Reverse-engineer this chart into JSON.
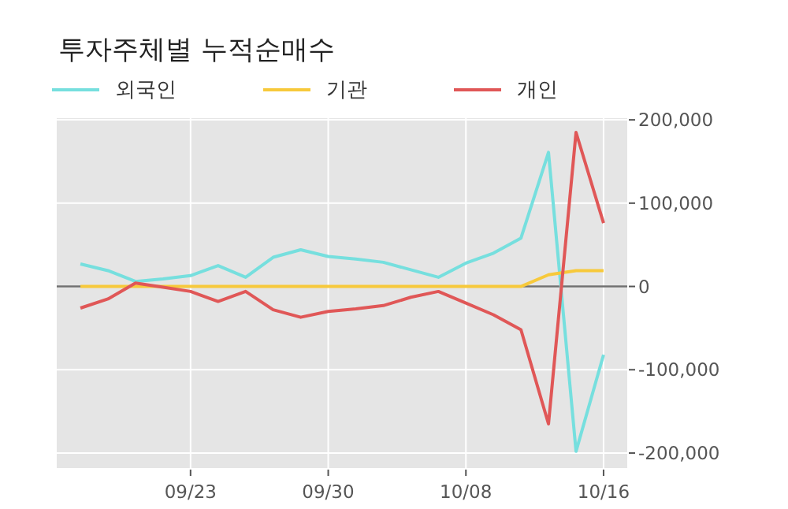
{
  "chart_data": {
    "type": "line",
    "title": "투자주체별 누적순매수",
    "categories": [
      null,
      null,
      null,
      null,
      "09/23",
      null,
      null,
      null,
      null,
      "09/30",
      null,
      null,
      null,
      null,
      "10/08",
      null,
      null,
      null,
      null,
      "10/16"
    ],
    "series": [
      {
        "name": "외국인",
        "color": "#76dfde",
        "values": [
          27000,
          19000,
          6000,
          9000,
          13000,
          25000,
          11000,
          35000,
          44000,
          36000,
          33000,
          29000,
          20000,
          11000,
          28000,
          40000,
          58000,
          161000,
          -198000,
          -82000
        ]
      },
      {
        "name": "기관",
        "color": "#f7c93b",
        "values": [
          0,
          0,
          0,
          0,
          0,
          0,
          0,
          0,
          0,
          0,
          0,
          0,
          0,
          0,
          0,
          0,
          0,
          14000,
          19000,
          19000
        ]
      },
      {
        "name": "개인",
        "color": "#e05757",
        "values": [
          -26000,
          -15000,
          4000,
          -1000,
          -6000,
          -18000,
          -6000,
          -28000,
          -37000,
          -30000,
          -27000,
          -23000,
          -13000,
          -6000,
          -20000,
          -34000,
          -52000,
          -165000,
          185000,
          76000
        ]
      }
    ],
    "ylim": [
      -218000,
      202000
    ],
    "yticks": [
      {
        "value": -200000,
        "label": "-200,000"
      },
      {
        "value": -100000,
        "label": "-100,000"
      },
      {
        "value": 0,
        "label": "0"
      },
      {
        "value": 100000,
        "label": "100,000"
      },
      {
        "value": 200000,
        "label": "200,000"
      }
    ],
    "ref_lines": [
      {
        "axis": "y",
        "value": 0,
        "color": "#707070"
      }
    ],
    "grid": true,
    "legend": "top left",
    "marker": "none",
    "line_style": "solid"
  }
}
